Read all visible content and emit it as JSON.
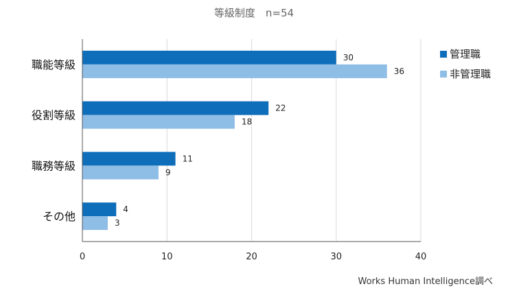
{
  "chart_data": {
    "type": "bar",
    "orientation": "horizontal",
    "title": "等級制度　n=54",
    "categories": [
      "職能等級",
      "役割等級",
      "職務等級",
      "その他"
    ],
    "series": [
      {
        "name": "管理職",
        "color": "#0f6eba",
        "values": [
          30,
          22,
          11,
          4
        ]
      },
      {
        "name": "非管理職",
        "color": "#8ebde6",
        "values": [
          36,
          18,
          9,
          3
        ]
      }
    ],
    "xlim": [
      0,
      40
    ],
    "xticks": [
      0,
      10,
      20,
      30,
      40
    ],
    "grid": true,
    "legend": "right",
    "source": "Works Human Intelligence調べ"
  }
}
